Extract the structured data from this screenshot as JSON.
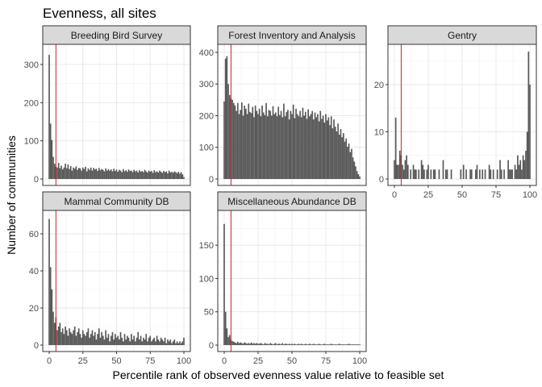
{
  "chart_data": {
    "type": "bar",
    "title": "Evenness, all sites",
    "xlabel": "Percentile rank of observed evenness value relative to feasible set",
    "ylabel": "Number of communities",
    "reference_line": {
      "x": 5,
      "color": "#cc2222"
    },
    "grid": true,
    "bar_color": "#595959",
    "panels": [
      {
        "name": "Breeding Bird Survey",
        "xlim": [
          0,
          100
        ],
        "ylim": [
          0,
          340
        ],
        "xticks": [],
        "yticks": [
          0,
          100,
          200,
          300
        ],
        "values": [
          325,
          145,
          102,
          58,
          40,
          32,
          30,
          42,
          28,
          35,
          25,
          30,
          40,
          28,
          38,
          26,
          34,
          22,
          30,
          27,
          33,
          24,
          29,
          28,
          22,
          30,
          26,
          32,
          20,
          28,
          24,
          30,
          22,
          29,
          25,
          27,
          21,
          29,
          23,
          26,
          24,
          20,
          28,
          22,
          26,
          22,
          25,
          20,
          27,
          21,
          25,
          19,
          24,
          22,
          18,
          26,
          20,
          23,
          19,
          25,
          21,
          22,
          18,
          24,
          20,
          22,
          17,
          23,
          19,
          21,
          18,
          24,
          20,
          17,
          22,
          19,
          21,
          16,
          23,
          18,
          20,
          17,
          22,
          19,
          16,
          21,
          18,
          20,
          15,
          22,
          17,
          19,
          16,
          20,
          18,
          15,
          19,
          14,
          18,
          12,
          5
        ]
      },
      {
        "name": "Forest Inventory and Analysis",
        "xlim": [
          0,
          100
        ],
        "ylim": [
          0,
          410
        ],
        "xticks": [],
        "yticks": [
          0,
          100,
          200,
          300,
          400
        ],
        "values": [
          245,
          380,
          388,
          300,
          265,
          255,
          250,
          240,
          232,
          215,
          240,
          205,
          218,
          242,
          200,
          232,
          222,
          205,
          238,
          212,
          208,
          228,
          195,
          232,
          215,
          205,
          222,
          198,
          232,
          210,
          202,
          240,
          198,
          218,
          215,
          200,
          230,
          205,
          210,
          198,
          228,
          202,
          215,
          195,
          238,
          198,
          212,
          218,
          188,
          215,
          205,
          235,
          192,
          222,
          205,
          198,
          215,
          195,
          225,
          200,
          212,
          190,
          220,
          198,
          205,
          215,
          188,
          210,
          195,
          205,
          182,
          215,
          190,
          200,
          178,
          205,
          185,
          195,
          170,
          198,
          160,
          188,
          165,
          150,
          175,
          140,
          158,
          132,
          145,
          118,
          128,
          102,
          112,
          85,
          95,
          68,
          55,
          40,
          25,
          15,
          8
        ]
      },
      {
        "name": "Gentry",
        "xlim": [
          0,
          100
        ],
        "ylim": [
          0,
          27.5
        ],
        "xticks": [
          0,
          25,
          50,
          75,
          100
        ],
        "yticks": [
          0,
          10,
          20
        ],
        "values": [
          4,
          13,
          3,
          3,
          6,
          5,
          3,
          2,
          4,
          5,
          3,
          0,
          2,
          0,
          3,
          2,
          2,
          0,
          2,
          0,
          4,
          3,
          2,
          0,
          2,
          3,
          0,
          2,
          0,
          2,
          2,
          0,
          0,
          2,
          0,
          0,
          4,
          0,
          2,
          2,
          0,
          0,
          2,
          0,
          0,
          0,
          0,
          0,
          0,
          2,
          0,
          3,
          0,
          2,
          0,
          0,
          2,
          2,
          0,
          0,
          2,
          3,
          0,
          2,
          0,
          2,
          0,
          2,
          0,
          0,
          3,
          2,
          0,
          2,
          0,
          0,
          2,
          0,
          4,
          2,
          0,
          2,
          0,
          0,
          4,
          2,
          2,
          2,
          0,
          3,
          2,
          5,
          3,
          4,
          2,
          5,
          4,
          6,
          10,
          27,
          20
        ]
      },
      {
        "name": "Mammal Community DB",
        "xlim": [
          0,
          100
        ],
        "ylim": [
          0,
          70
        ],
        "xticks": [
          0,
          25,
          50,
          75,
          100
        ],
        "yticks": [
          0,
          20,
          40,
          60
        ],
        "values": [
          68,
          42,
          30,
          18,
          12,
          15,
          8,
          10,
          12,
          7,
          9,
          6,
          10,
          8,
          5,
          9,
          7,
          6,
          8,
          10,
          5,
          7,
          9,
          6,
          4,
          8,
          6,
          5,
          7,
          9,
          4,
          6,
          8,
          5,
          7,
          3,
          6,
          9,
          4,
          7,
          5,
          3,
          8,
          4,
          6,
          2,
          5,
          7,
          3,
          6,
          4,
          5,
          3,
          7,
          4,
          2,
          6,
          3,
          5,
          4,
          2,
          6,
          3,
          5,
          2,
          4,
          7,
          3,
          5,
          2,
          4,
          3,
          6,
          2,
          4,
          5,
          2,
          3,
          4,
          2,
          5,
          3,
          2,
          4,
          3,
          2,
          4,
          1,
          3,
          2,
          3,
          1,
          2,
          3,
          1,
          2,
          1,
          2,
          1,
          2,
          4
        ]
      },
      {
        "name": "Miscellaneous Abundance DB",
        "xlim": [
          0,
          100
        ],
        "ylim": [
          0,
          195
        ],
        "xticks": [
          0,
          25,
          50,
          75,
          100
        ],
        "yticks": [
          0,
          50,
          100,
          150
        ],
        "values": [
          182,
          50,
          25,
          12,
          15,
          8,
          6,
          5,
          4,
          3,
          5,
          3,
          4,
          3,
          2,
          4,
          3,
          2,
          3,
          2,
          4,
          2,
          3,
          2,
          3,
          2,
          2,
          3,
          2,
          1,
          3,
          2,
          2,
          1,
          3,
          2,
          1,
          2,
          3,
          1,
          2,
          2,
          1,
          3,
          1,
          2,
          2,
          1,
          2,
          1,
          2,
          1,
          2,
          1,
          1,
          2,
          1,
          2,
          1,
          1,
          2,
          1,
          1,
          2,
          1,
          1,
          2,
          1,
          1,
          1,
          2,
          1,
          1,
          1,
          2,
          1,
          1,
          1,
          1,
          2,
          1,
          1,
          1,
          1,
          1,
          2,
          1,
          1,
          1,
          1,
          1,
          1,
          2,
          1,
          1,
          1,
          1,
          1,
          1,
          1,
          1
        ]
      }
    ]
  }
}
